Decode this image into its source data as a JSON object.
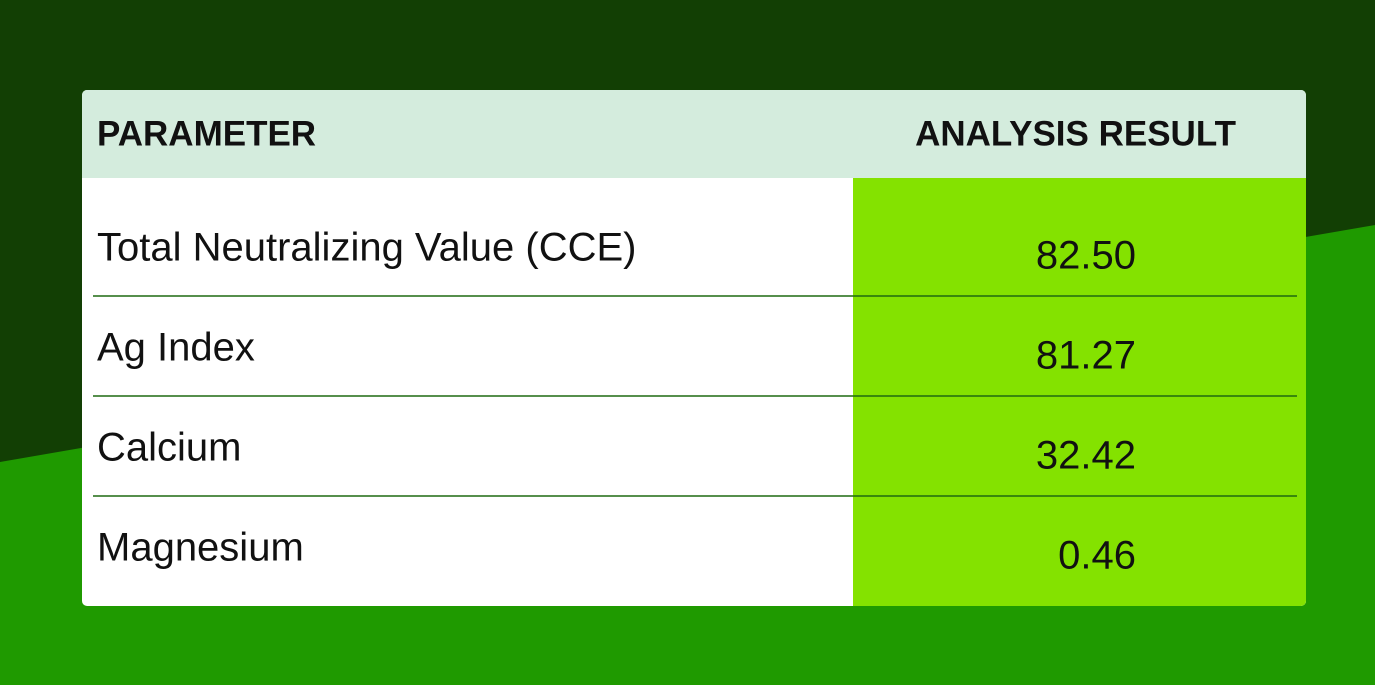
{
  "table": {
    "header": [
      "PARAMETER",
      "ANALYSIS RESULT"
    ],
    "rows": [
      [
        "Total Neutralizing Value (CCE)",
        "82.50"
      ],
      [
        "Ag Index",
        "81.27"
      ],
      [
        "Calcium",
        "32.42"
      ],
      [
        "Magnesium",
        "0.46"
      ]
    ]
  }
}
